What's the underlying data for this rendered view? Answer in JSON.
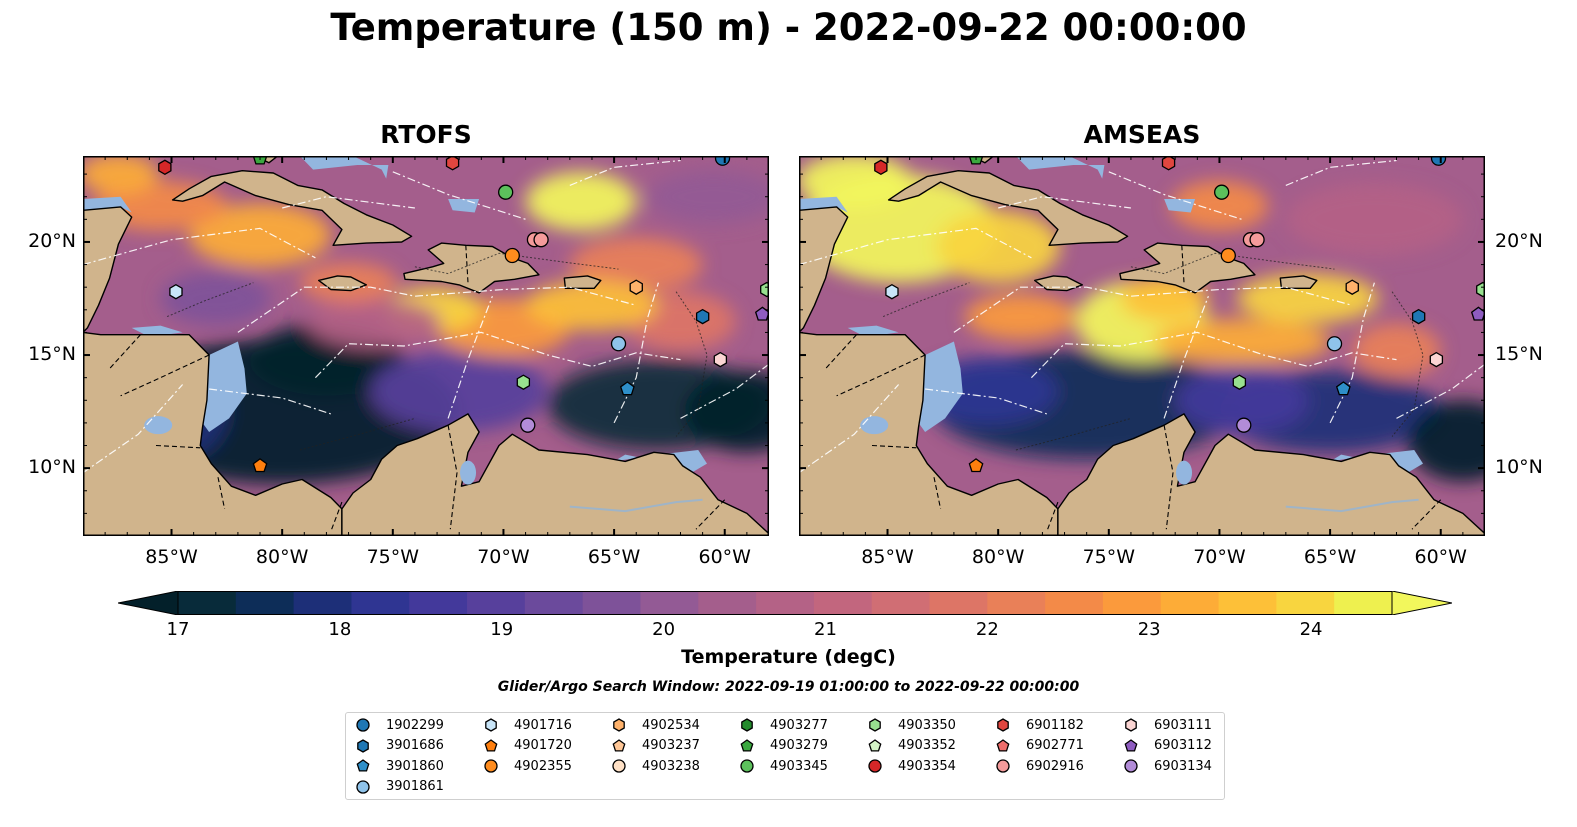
{
  "title": "Temperature (150 m) - 2022-09-22 00:00:00",
  "panels": [
    {
      "title": "RTOFS"
    },
    {
      "title": "AMSEAS"
    }
  ],
  "axes": {
    "x_labels": [
      "85°W",
      "80°W",
      "75°W",
      "70°W",
      "65°W",
      "60°W"
    ],
    "y_labels": [
      "20°N",
      "15°N",
      "10°N"
    ],
    "lon_range": [
      -89,
      -58
    ],
    "lat_range": [
      7,
      23.8
    ]
  },
  "colorbar": {
    "label": "Temperature (degC)",
    "ticks": [
      "17",
      "18",
      "19",
      "20",
      "21",
      "22",
      "23",
      "24"
    ],
    "range": [
      17,
      24.5
    ],
    "extend": "both",
    "colors": [
      "#082b3a",
      "#0d2d58",
      "#1d2f78",
      "#2f3592",
      "#43399b",
      "#57409c",
      "#6b4a9c",
      "#7e5299",
      "#935a95",
      "#a45e8c",
      "#b46286",
      "#c2667e",
      "#d06e74",
      "#dd7566",
      "#e98058",
      "#f38a48",
      "#fb9a3c",
      "#fdac37",
      "#fdc038",
      "#f8d53f",
      "#eef04f"
    ],
    "under_color": "#03202a",
    "over_color": "#f2f75c"
  },
  "search_window": "Glider/Argo Search Window: 2022-09-19 01:00:00 to 2022-09-22 00:00:00",
  "legend": {
    "items": [
      {
        "id": "1902299",
        "marker": "circle",
        "color": "#1f77b4"
      },
      {
        "id": "3901686",
        "marker": "hexagon",
        "color": "#1f77b4"
      },
      {
        "id": "3901860",
        "marker": "pentagon",
        "color": "#2e8fc9"
      },
      {
        "id": "3901861",
        "marker": "circle",
        "color": "#8fc3ea"
      },
      {
        "id": "4901716",
        "marker": "hexagon",
        "color": "#c8e5f8"
      },
      {
        "id": "4901720",
        "marker": "pentagon",
        "color": "#ff7f0e"
      },
      {
        "id": "4902355",
        "marker": "circle",
        "color": "#ff8c1e"
      },
      {
        "id": "4902534",
        "marker": "hexagon",
        "color": "#ffb26b"
      },
      {
        "id": "4903237",
        "marker": "pentagon",
        "color": "#ffc797"
      },
      {
        "id": "4903238",
        "marker": "circle",
        "color": "#ffe1c6"
      },
      {
        "id": "4903277",
        "marker": "hexagon",
        "color": "#238b2c"
      },
      {
        "id": "4903279",
        "marker": "pentagon",
        "color": "#3aa83f"
      },
      {
        "id": "4903345",
        "marker": "circle",
        "color": "#5cc05c"
      },
      {
        "id": "4903350",
        "marker": "hexagon",
        "color": "#98e08f"
      },
      {
        "id": "4903352",
        "marker": "pentagon",
        "color": "#d5f5c7"
      },
      {
        "id": "4903354",
        "marker": "circle",
        "color": "#d62728"
      },
      {
        "id": "6901182",
        "marker": "hexagon",
        "color": "#e0463f"
      },
      {
        "id": "6902771",
        "marker": "pentagon",
        "color": "#ee6d6b"
      },
      {
        "id": "6902916",
        "marker": "circle",
        "color": "#f49b9b"
      },
      {
        "id": "6903111",
        "marker": "hexagon",
        "color": "#fbd5d3"
      },
      {
        "id": "6903112",
        "marker": "pentagon",
        "color": "#8e5cc0"
      },
      {
        "id": "6903134",
        "marker": "circle",
        "color": "#b28cd8"
      }
    ]
  },
  "floats": [
    {
      "lon": -85.3,
      "lat": 23.3,
      "marker": "hexagon",
      "color": "#d62728"
    },
    {
      "lon": -81.0,
      "lat": 23.7,
      "marker": "pentagon",
      "color": "#3aa83f"
    },
    {
      "lon": -72.3,
      "lat": 23.5,
      "marker": "hexagon",
      "color": "#e0463f"
    },
    {
      "lon": -60.1,
      "lat": 23.7,
      "marker": "circle",
      "color": "#1f77b4"
    },
    {
      "lon": -69.9,
      "lat": 22.2,
      "marker": "circle",
      "color": "#5cc05c"
    },
    {
      "lon": -68.6,
      "lat": 20.1,
      "marker": "circle",
      "color": "#f49b9b"
    },
    {
      "lon": -68.3,
      "lat": 20.1,
      "marker": "circle",
      "color": "#f49b9b"
    },
    {
      "lon": -69.6,
      "lat": 19.4,
      "marker": "circle",
      "color": "#ff8c1e"
    },
    {
      "lon": -84.8,
      "lat": 17.8,
      "marker": "hexagon",
      "color": "#c8e5f8"
    },
    {
      "lon": -64.0,
      "lat": 18.0,
      "marker": "hexagon",
      "color": "#ffb26b"
    },
    {
      "lon": -58.1,
      "lat": 17.9,
      "marker": "hexagon",
      "color": "#98e08f"
    },
    {
      "lon": -61.0,
      "lat": 16.7,
      "marker": "hexagon",
      "color": "#1f77b4"
    },
    {
      "lon": -58.3,
      "lat": 16.8,
      "marker": "pentagon",
      "color": "#8e5cc0"
    },
    {
      "lon": -64.8,
      "lat": 15.5,
      "marker": "circle",
      "color": "#8fc3ea"
    },
    {
      "lon": -60.2,
      "lat": 14.8,
      "marker": "hexagon",
      "color": "#fbd5d3"
    },
    {
      "lon": -69.1,
      "lat": 13.8,
      "marker": "hexagon",
      "color": "#98e08f"
    },
    {
      "lon": -64.4,
      "lat": 13.5,
      "marker": "pentagon",
      "color": "#2e8fc9"
    },
    {
      "lon": -68.9,
      "lat": 11.9,
      "marker": "circle",
      "color": "#b28cd8"
    },
    {
      "lon": -81.0,
      "lat": 10.1,
      "marker": "pentagon",
      "color": "#ff7f0e"
    }
  ]
}
